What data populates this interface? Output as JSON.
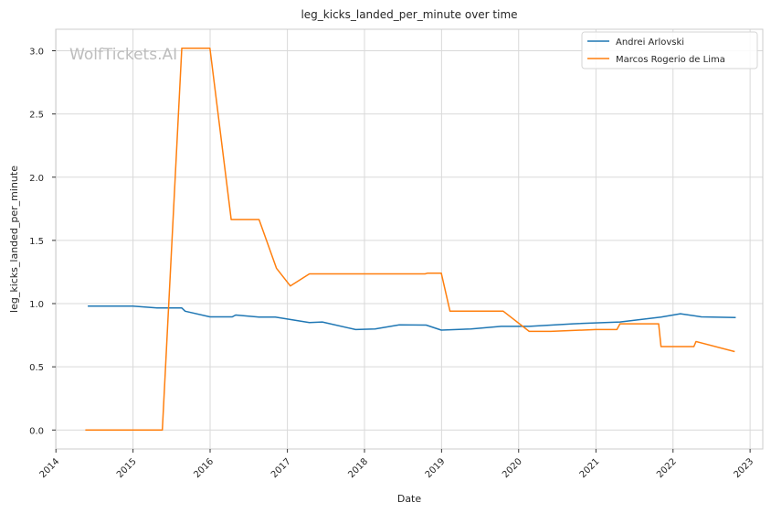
{
  "chart_data": {
    "type": "line",
    "title": "leg_kicks_landed_per_minute over time",
    "xlabel": "Date",
    "ylabel": "leg_kicks_landed_per_minute",
    "watermark": "WolfTickets.AI",
    "x_ticks": [
      "2014",
      "2015",
      "2016",
      "2017",
      "2018",
      "2019",
      "2020",
      "2021",
      "2022",
      "2023"
    ],
    "y_ticks": [
      "0.0",
      "0.5",
      "1.0",
      "1.5",
      "2.0",
      "2.5",
      "3.0"
    ],
    "xlim": [
      "2013-12-31",
      "2023-03-02"
    ],
    "ylim": [
      -0.15,
      3.17
    ],
    "grid": true,
    "legend_position": "top-right",
    "series": [
      {
        "name": "Andrei Arlovski",
        "color": "#1f77b4",
        "points": [
          [
            "2014-06-01",
            0.98
          ],
          [
            "2014-12-31",
            0.98
          ],
          [
            "2015-04-25",
            0.965
          ],
          [
            "2015-08-20",
            0.965
          ],
          [
            "2015-09-05",
            0.94
          ],
          [
            "2015-12-31",
            0.895
          ],
          [
            "2016-04-15",
            0.895
          ],
          [
            "2016-05-01",
            0.91
          ],
          [
            "2016-08-20",
            0.893
          ],
          [
            "2016-11-05",
            0.893
          ],
          [
            "2017-04-15",
            0.85
          ],
          [
            "2017-06-15",
            0.855
          ],
          [
            "2017-11-20",
            0.795
          ],
          [
            "2018-02-20",
            0.8
          ],
          [
            "2018-06-15",
            0.832
          ],
          [
            "2018-10-20",
            0.83
          ],
          [
            "2018-12-31",
            0.79
          ],
          [
            "2019-05-20",
            0.8
          ],
          [
            "2019-10-10",
            0.82
          ],
          [
            "2020-02-20",
            0.82
          ],
          [
            "2020-09-15",
            0.84
          ],
          [
            "2021-04-25",
            0.855
          ],
          [
            "2021-11-05",
            0.893
          ],
          [
            "2022-02-05",
            0.92
          ],
          [
            "2022-05-15",
            0.895
          ],
          [
            "2022-10-25",
            0.89
          ]
        ]
      },
      {
        "name": "Marcos Rogerio de Lima",
        "color": "#ff7f0e",
        "points": [
          [
            "2014-05-20",
            0.0
          ],
          [
            "2015-05-20",
            0.0
          ],
          [
            "2015-08-20",
            3.02
          ],
          [
            "2015-12-31",
            3.02
          ],
          [
            "2016-04-10",
            1.665
          ],
          [
            "2016-08-20",
            1.665
          ],
          [
            "2016-11-10",
            1.28
          ],
          [
            "2017-01-15",
            1.14
          ],
          [
            "2017-04-15",
            1.235
          ],
          [
            "2018-10-15",
            1.235
          ],
          [
            "2018-10-25",
            1.24
          ],
          [
            "2018-12-31",
            1.24
          ],
          [
            "2019-02-10",
            0.94
          ],
          [
            "2019-10-20",
            0.94
          ],
          [
            "2020-02-20",
            0.78
          ],
          [
            "2020-06-01",
            0.78
          ],
          [
            "2020-12-31",
            0.795
          ],
          [
            "2021-04-10",
            0.795
          ],
          [
            "2021-04-25",
            0.84
          ],
          [
            "2021-10-25",
            0.84
          ],
          [
            "2021-11-05",
            0.66
          ],
          [
            "2022-04-10",
            0.66
          ],
          [
            "2022-04-20",
            0.7
          ],
          [
            "2022-10-20",
            0.62
          ]
        ]
      }
    ]
  }
}
